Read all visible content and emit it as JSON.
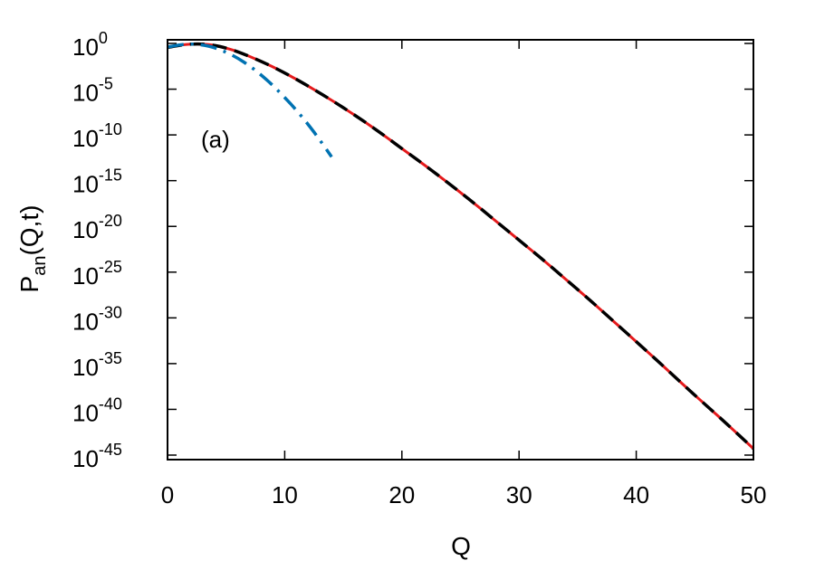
{
  "chart_data": {
    "type": "line",
    "title": "",
    "xlabel": "Q",
    "ylabel": {
      "main": "P",
      "sub": "an",
      "rest": "(Q,t)"
    },
    "annotation": "(a)",
    "xlim": [
      0,
      50
    ],
    "ylim_log10": [
      -45,
      1
    ],
    "y_scale": "log",
    "grid": false,
    "x_ticks": [
      0,
      10,
      20,
      30,
      40,
      50
    ],
    "x_tick_labels": [
      "0",
      "10",
      "20",
      "30",
      "40",
      "50"
    ],
    "y_ticks_log10": [
      0,
      -5,
      -10,
      -15,
      -20,
      -25,
      -30,
      -35,
      -40,
      -45
    ],
    "y_tick_labels": [
      {
        "base": "10",
        "exp": "0"
      },
      {
        "base": "10",
        "exp": "-5"
      },
      {
        "base": "10",
        "exp": "-10"
      },
      {
        "base": "10",
        "exp": "-15"
      },
      {
        "base": "10",
        "exp": "-20"
      },
      {
        "base": "10",
        "exp": "-25"
      },
      {
        "base": "10",
        "exp": "-30"
      },
      {
        "base": "10",
        "exp": "-35"
      },
      {
        "base": "10",
        "exp": "-40"
      },
      {
        "base": "10",
        "exp": "-45"
      }
    ],
    "series": [
      {
        "color": "#e41a1c",
        "style": "solid",
        "points_log10": [
          [
            0,
            -0.45
          ],
          [
            1,
            -0.2
          ],
          [
            2,
            -0.06
          ],
          [
            3,
            -0.05
          ],
          [
            4,
            -0.2
          ],
          [
            5,
            -0.5
          ],
          [
            6,
            -0.9
          ],
          [
            8,
            -1.95
          ],
          [
            10,
            -3.2
          ],
          [
            12,
            -4.65
          ],
          [
            14,
            -6.2
          ],
          [
            16,
            -7.85
          ],
          [
            18,
            -9.6
          ],
          [
            20,
            -11.5
          ],
          [
            22,
            -13.35
          ],
          [
            24,
            -15.3
          ],
          [
            26,
            -17.3
          ],
          [
            28,
            -19.4
          ],
          [
            30,
            -21.5
          ],
          [
            32,
            -23.6
          ],
          [
            34,
            -25.8
          ],
          [
            36,
            -28.0
          ],
          [
            38,
            -30.3
          ],
          [
            40,
            -32.6
          ],
          [
            42,
            -34.9
          ],
          [
            44,
            -37.3
          ],
          [
            46,
            -39.6
          ],
          [
            48,
            -41.9
          ],
          [
            50,
            -44.3
          ]
        ]
      },
      {
        "color": "#000000",
        "style": "dashed",
        "points_log10": [
          [
            0,
            -0.45
          ],
          [
            1,
            -0.2
          ],
          [
            2,
            -0.06
          ],
          [
            3,
            -0.05
          ],
          [
            4,
            -0.2
          ],
          [
            5,
            -0.5
          ],
          [
            6,
            -0.9
          ],
          [
            8,
            -1.95
          ],
          [
            10,
            -3.2
          ],
          [
            12,
            -4.65
          ],
          [
            14,
            -6.2
          ],
          [
            16,
            -7.85
          ],
          [
            18,
            -9.6
          ],
          [
            20,
            -11.5
          ],
          [
            22,
            -13.35
          ],
          [
            24,
            -15.3
          ],
          [
            26,
            -17.3
          ],
          [
            28,
            -19.4
          ],
          [
            30,
            -21.5
          ],
          [
            32,
            -23.6
          ],
          [
            34,
            -25.8
          ],
          [
            36,
            -28.0
          ],
          [
            38,
            -30.3
          ],
          [
            40,
            -32.6
          ],
          [
            42,
            -34.9
          ],
          [
            44,
            -37.3
          ],
          [
            46,
            -39.6
          ],
          [
            48,
            -41.9
          ],
          [
            50,
            -44.3
          ]
        ]
      },
      {
        "color": "#0072b2",
        "style": "dash-dot",
        "points_log10": [
          [
            0,
            -0.4
          ],
          [
            1,
            -0.15
          ],
          [
            2,
            -0.05
          ],
          [
            3,
            -0.15
          ],
          [
            4,
            -0.45
          ],
          [
            5,
            -0.95
          ],
          [
            6,
            -1.6
          ],
          [
            7,
            -2.45
          ],
          [
            8,
            -3.45
          ],
          [
            9,
            -4.6
          ],
          [
            10,
            -5.9
          ],
          [
            11,
            -7.3
          ],
          [
            12,
            -8.85
          ],
          [
            13,
            -10.55
          ],
          [
            14,
            -12.4
          ]
        ]
      }
    ]
  }
}
